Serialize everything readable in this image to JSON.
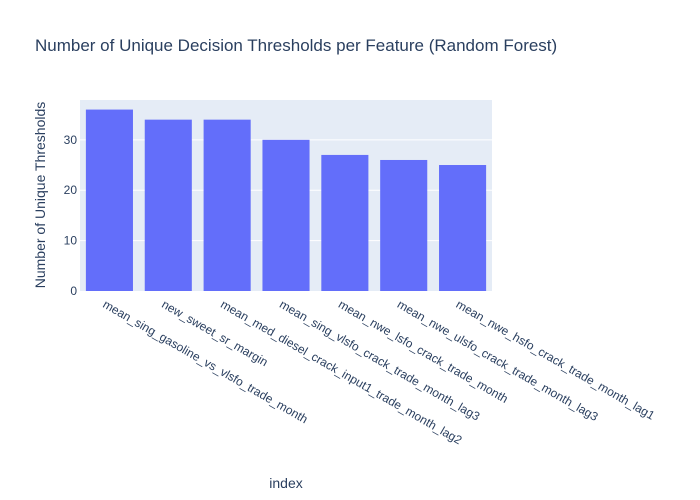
{
  "chart_data": {
    "type": "bar",
    "title": "Number of Unique Decision Thresholds per Feature (Random Forest)",
    "xlabel": "index",
    "ylabel": "Number of Unique Thresholds",
    "categories": [
      "mean_sing_gasoline_vs_vlsfo_trade_month",
      "new_sweet_sr_margin",
      "mean_med_diesel_crack_input1_trade_month_lag2",
      "mean_sing_vlsfo_crack_trade_month_lag3",
      "mean_nwe_lsfo_crack_trade_month",
      "mean_nwe_ulsfo_crack_trade_month_lag3",
      "mean_nwe_hsfo_crack_trade_month_lag1"
    ],
    "values": [
      36,
      34,
      34,
      30,
      27,
      26,
      25
    ],
    "ylim": [
      0,
      37.9
    ],
    "yticks": [
      0,
      10,
      20,
      30
    ],
    "grid": true,
    "colors": {
      "bar": "#636efa",
      "plot_background": "#e5ecf6",
      "grid": "#ffffff",
      "text": "#2a3f5f"
    }
  }
}
